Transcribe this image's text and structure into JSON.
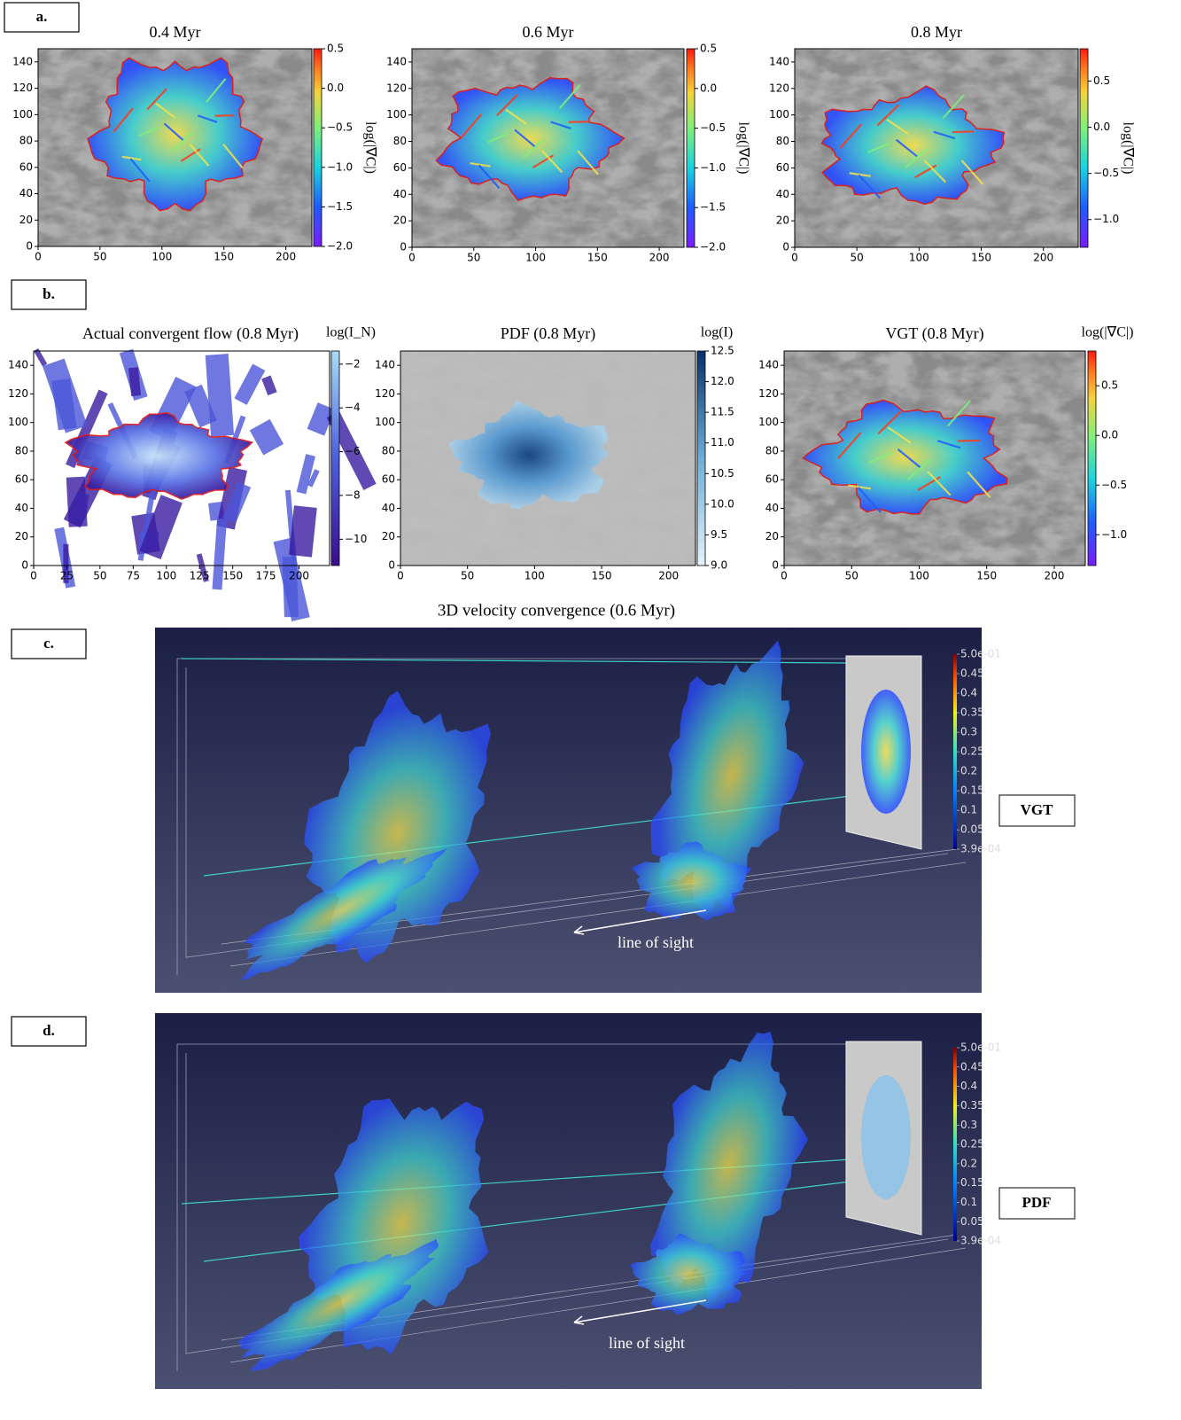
{
  "panel_labels": [
    "a.",
    "b.",
    "c.",
    "d."
  ],
  "section_title": "3D velocity convergence (0.6 Myr)",
  "chart_data": [
    {
      "type": "image",
      "title": "0.4 Myr",
      "background": "gray",
      "colormap": "rainbow",
      "xlim": [
        0,
        221
      ],
      "ylim": [
        0,
        150
      ],
      "xticks": [
        0,
        50,
        100,
        150,
        200
      ],
      "yticks": [
        0,
        20,
        40,
        60,
        80,
        100,
        120,
        140
      ],
      "colorbar": {
        "label": "log(|∇C|)",
        "position": "right",
        "lim": [
          -2.0,
          0.5
        ],
        "ticks": [
          0.5,
          {
            "value": 0,
            "label": "0.0"
          },
          {
            "value": -0.5,
            "label": "−0.5"
          },
          {
            "value": -1.0,
            "label": "−1.0"
          },
          {
            "value": -1.5,
            "label": "−1.5"
          },
          {
            "value": -2.0,
            "label": "−2.0"
          }
        ]
      }
    },
    {
      "type": "image",
      "title": "0.6 Myr",
      "background": "gray",
      "colormap": "rainbow",
      "xlim": [
        0,
        220
      ],
      "ylim": [
        0,
        150
      ],
      "xticks": [
        0,
        50,
        100,
        150,
        200
      ],
      "yticks": [
        0,
        20,
        40,
        60,
        80,
        100,
        120,
        140
      ],
      "colorbar": {
        "label": "log(|∇C|)",
        "position": "right",
        "lim": [
          -2.0,
          0.5
        ],
        "ticks": [
          0.5,
          {
            "value": 0,
            "label": "0.0"
          },
          {
            "value": -0.5,
            "label": "−0.5"
          },
          {
            "value": -1.0,
            "label": "−1.0"
          },
          {
            "value": -1.5,
            "label": "−1.5"
          },
          {
            "value": -2.0,
            "label": "−2.0"
          }
        ]
      }
    },
    {
      "type": "image",
      "title": "0.8 Myr",
      "background": "gray",
      "colormap": "rainbow",
      "xlim": [
        0,
        228
      ],
      "ylim": [
        0,
        150
      ],
      "xticks": [
        0,
        50,
        100,
        150,
        200
      ],
      "yticks": [
        0,
        20,
        40,
        60,
        80,
        100,
        120,
        140
      ],
      "colorbar": {
        "label": "log(|∇C|)",
        "position": "right",
        "lim": [
          -1.3,
          0.85
        ],
        "ticks": [
          0.5,
          {
            "value": 0,
            "label": "0.0"
          },
          {
            "value": -0.5,
            "label": "−0.5"
          },
          {
            "value": -1.0,
            "label": "−1.0"
          }
        ]
      }
    },
    {
      "type": "image",
      "title": "Actual convergent flow (0.8 Myr)",
      "background": "white",
      "colormap": "purple-blue",
      "xlim": [
        0,
        223
      ],
      "ylim": [
        0,
        150
      ],
      "xticks": [
        0,
        25,
        50,
        75,
        100,
        125,
        150,
        175,
        200
      ],
      "yticks": [
        0,
        20,
        40,
        60,
        80,
        100,
        120,
        140
      ],
      "colorbar": {
        "label": "log(I_N)",
        "position": "top",
        "lim": [
          -11.2,
          -1.4
        ],
        "ticks": [
          {
            "value": -2,
            "label": "−2"
          },
          {
            "value": -4,
            "label": "−4"
          },
          {
            "value": -6,
            "label": "−6"
          },
          {
            "value": -8,
            "label": "−8"
          },
          {
            "value": -10,
            "label": "−10"
          }
        ]
      }
    },
    {
      "type": "image",
      "title": "PDF (0.8 Myr)",
      "background": "light",
      "colormap": "blues",
      "xlim": [
        0,
        220
      ],
      "ylim": [
        0,
        150
      ],
      "xticks": [
        0,
        50,
        100,
        150,
        200
      ],
      "yticks": [
        0,
        20,
        40,
        60,
        80,
        100,
        120,
        140
      ],
      "colorbar": {
        "label": "log(I)",
        "position": "top",
        "lim": [
          9.0,
          12.5
        ],
        "ticks": [
          12.5,
          {
            "value": 12,
            "label": "12.0"
          },
          11.5,
          {
            "value": 11,
            "label": "11.0"
          },
          10.5,
          {
            "value": 10,
            "label": "10.0"
          },
          9.5,
          {
            "value": 9,
            "label": "9.0"
          }
        ]
      }
    },
    {
      "type": "image",
      "title": "VGT (0.8 Myr)",
      "background": "gray",
      "colormap": "rainbow",
      "xlim": [
        0,
        223
      ],
      "ylim": [
        0,
        150
      ],
      "xticks": [
        0,
        50,
        100,
        150,
        200
      ],
      "yticks": [
        0,
        20,
        40,
        60,
        80,
        100,
        120,
        140
      ],
      "colorbar": {
        "label": "log(|∇C|)",
        "position": "top",
        "lim": [
          -1.31,
          0.85
        ],
        "ticks": [
          0.5,
          {
            "value": 0,
            "label": "0.0"
          },
          {
            "value": -0.5,
            "label": "−0.5"
          },
          {
            "value": -1.0,
            "label": "−1.0"
          }
        ]
      }
    }
  ],
  "renders": [
    {
      "label": "VGT",
      "annotation": "line of sight",
      "plane": "rainbow",
      "colorbar_lim": [
        0.00039,
        0.5
      ],
      "colorbar_ticks": [
        {
          "value": 0.5,
          "label": "5.0e-01"
        },
        0.45,
        0.4,
        0.35,
        0.3,
        0.25,
        0.2,
        0.15,
        0.1,
        0.05,
        {
          "value": 0.00039,
          "label": "3.9e-04"
        }
      ]
    },
    {
      "label": "PDF",
      "annotation": "line of sight",
      "plane": "blues",
      "colorbar_lim": [
        0.00039,
        0.5
      ],
      "colorbar_ticks": [
        {
          "value": 0.5,
          "label": "5.0e-01"
        },
        0.45,
        0.4,
        0.35,
        0.3,
        0.25,
        0.2,
        0.15,
        0.1,
        0.05,
        {
          "value": 0.00039,
          "label": "3.9e-04"
        }
      ]
    }
  ]
}
